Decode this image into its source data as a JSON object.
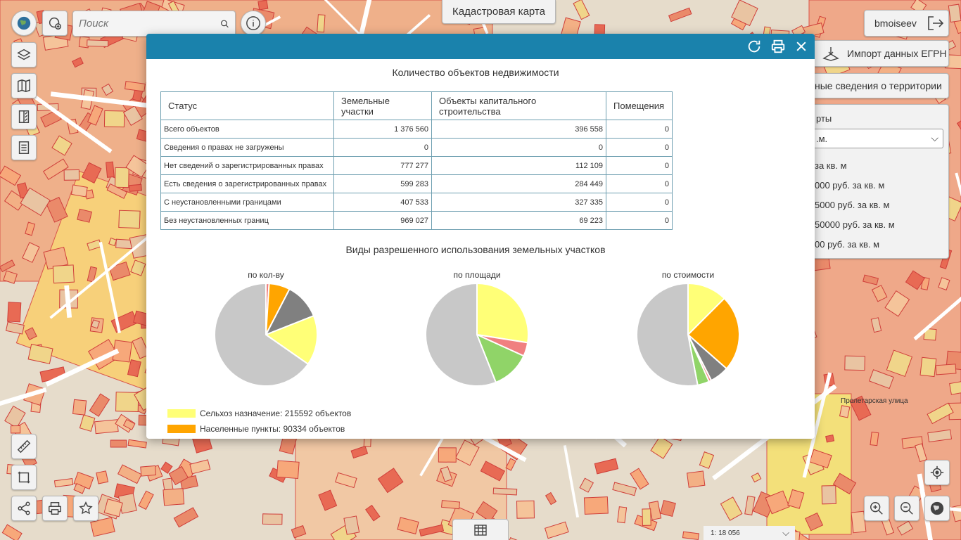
{
  "app": {
    "title": "Кадастровая карта",
    "search_placeholder": "Поиск",
    "user": "bmoiseev",
    "egrn_label": "Импорт данных ЕГРН",
    "territory_label": "ные сведения о территории",
    "street_label": "Пролетарская улица",
    "scale_label": "1: 18 056"
  },
  "side_panel": {
    "title": "рты",
    "select_value": ".м.",
    "rows": [
      "за кв. м",
      "000 руб. за кв. м",
      "5000 руб. за кв. м",
      "50000 руб. за кв. м",
      "00 руб. за кв. м"
    ]
  },
  "dialog": {
    "title": "Количество объектов недвижимости",
    "table": {
      "headers": [
        "Статус",
        "Земельные участки",
        "Объекты капитального строительства",
        "Помещения"
      ],
      "rows": [
        [
          "Всего объектов",
          "1 376 560",
          "396 558",
          "0"
        ],
        [
          "Сведения о правах не загружены",
          "0",
          "0",
          "0"
        ],
        [
          "Нет сведений о зарегистрированных правах",
          "777 277",
          "112 109",
          "0"
        ],
        [
          "Есть сведения о зарегистрированных правах",
          "599 283",
          "284 449",
          "0"
        ],
        [
          "С неустановленными границами",
          "407 533",
          "327 335",
          "0"
        ],
        [
          "Без неустановленных границ",
          "969 027",
          "69 223",
          "0"
        ]
      ]
    },
    "charts_title": "Виды разрешенного использования земельных участков",
    "legend": [
      {
        "label": "Сельхоз назначение: 215592 объектов",
        "color": "#ffff77"
      },
      {
        "label": "Населенные пункты: 90334 объектов",
        "color": "#ffa500"
      }
    ]
  },
  "chart_data": [
    {
      "type": "pie",
      "title": "по кол-ву",
      "colors": [
        "#ffff77",
        "#ffa500",
        "#808080",
        "#f08080",
        "#c8c8c8"
      ],
      "slices": [
        {
          "name": "Сельхоз назначение",
          "value": 15.7,
          "color": "#ffff77"
        },
        {
          "name": "Населенные пункты",
          "value": 6.6,
          "color": "#ffa500"
        },
        {
          "name": "",
          "value": 1.0,
          "color": "#f08080"
        },
        {
          "name": "",
          "value": 11.4,
          "color": "#808080"
        },
        {
          "name": "",
          "value": 65.3,
          "color": "#c8c8c8"
        }
      ],
      "order": [
        2,
        1,
        3,
        0,
        4
      ]
    },
    {
      "type": "pie",
      "title": "по площади",
      "slices": [
        {
          "value": 27.5,
          "color": "#ffff77"
        },
        {
          "value": 4.3,
          "color": "#f08080"
        },
        {
          "value": 12.2,
          "color": "#90d468"
        },
        {
          "value": 56.0,
          "color": "#c8c8c8"
        }
      ]
    },
    {
      "type": "pie",
      "title": "по стоимости",
      "slices": [
        {
          "value": 12.5,
          "color": "#ffff77"
        },
        {
          "value": 24.0,
          "color": "#ffa500"
        },
        {
          "value": 6.0,
          "color": "#808080"
        },
        {
          "value": 0.8,
          "color": "#f08080"
        },
        {
          "value": 3.7,
          "color": "#90d468"
        },
        {
          "value": 53.0,
          "color": "#c8c8c8"
        }
      ]
    }
  ]
}
